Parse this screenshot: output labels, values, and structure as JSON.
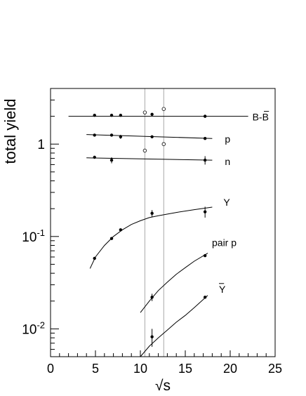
{
  "chart_data": {
    "type": "scatter",
    "title": "",
    "xlabel": "√s",
    "ylabel": "total yield",
    "xlim": [
      0,
      25
    ],
    "ylim": [
      0.005,
      4
    ],
    "yscale": "log",
    "grid": false,
    "legend": "none",
    "x_ticks": [
      {
        "value": 0,
        "label": "0"
      },
      {
        "value": 5,
        "label": "5"
      },
      {
        "value": 10,
        "label": "10"
      },
      {
        "value": 15,
        "label": "15"
      },
      {
        "value": 20,
        "label": "20"
      },
      {
        "value": 25,
        "label": "25"
      }
    ],
    "y_ticks": [
      {
        "value": 0.01,
        "base": "10",
        "exp": "-2"
      },
      {
        "value": 0.1,
        "base": "10",
        "exp": "-1"
      },
      {
        "value": 1,
        "base": "1",
        "exp": ""
      }
    ],
    "reference_lines_x": [
      10.5,
      12.6
    ],
    "series": [
      {
        "name": "B-B̄",
        "points": [
          {
            "x": 4.9,
            "y": 2.05,
            "err": 0
          },
          {
            "x": 6.8,
            "y": 2.05,
            "err": 0
          },
          {
            "x": 7.8,
            "y": 2.05,
            "err": 0
          },
          {
            "x": 11.3,
            "y": 2.1,
            "err": 0
          },
          {
            "x": 17.2,
            "y": 2.0,
            "err": 0.08
          }
        ],
        "open_points": [
          {
            "x": 10.5,
            "y": 2.2
          },
          {
            "x": 12.6,
            "y": 2.4
          }
        ],
        "curve": [
          [
            2,
            2.0
          ],
          [
            22,
            2.0
          ]
        ]
      },
      {
        "name": "p",
        "points": [
          {
            "x": 4.9,
            "y": 1.25,
            "err": 0
          },
          {
            "x": 6.8,
            "y": 1.25,
            "err": 0
          },
          {
            "x": 7.8,
            "y": 1.2,
            "err": 0.06
          },
          {
            "x": 11.3,
            "y": 1.2,
            "err": 0
          },
          {
            "x": 17.2,
            "y": 1.15,
            "err": 0
          }
        ],
        "open_points": [],
        "curve": [
          [
            4,
            1.27
          ],
          [
            18,
            1.15
          ]
        ]
      },
      {
        "name": "n",
        "points": [
          {
            "x": 4.9,
            "y": 0.72,
            "err": 0
          },
          {
            "x": 6.8,
            "y": 0.67,
            "err": 0.05
          },
          {
            "x": 17.2,
            "y": 0.67,
            "err": 0.07
          }
        ],
        "open_points": [
          {
            "x": 10.5,
            "y": 0.85
          },
          {
            "x": 12.6,
            "y": 1.0
          }
        ],
        "curve": [
          [
            4,
            0.71
          ],
          [
            18,
            0.67
          ]
        ]
      },
      {
        "name": "Y",
        "points": [
          {
            "x": 4.9,
            "y": 0.058,
            "err": 0
          },
          {
            "x": 6.8,
            "y": 0.095,
            "err": 0
          },
          {
            "x": 7.8,
            "y": 0.118,
            "err": 0
          },
          {
            "x": 11.3,
            "y": 0.178,
            "err": 0.015
          },
          {
            "x": 17.2,
            "y": 0.185,
            "err": 0.025
          }
        ],
        "open_points": [],
        "curve": [
          [
            4.4,
            0.045
          ],
          [
            5,
            0.06
          ],
          [
            6,
            0.08
          ],
          [
            7,
            0.1
          ],
          [
            8,
            0.118
          ],
          [
            9,
            0.135
          ],
          [
            10,
            0.148
          ],
          [
            11,
            0.16
          ],
          [
            12,
            0.168
          ],
          [
            14,
            0.182
          ],
          [
            16,
            0.195
          ],
          [
            18,
            0.208
          ]
        ]
      },
      {
        "name": "pair p",
        "points": [
          {
            "x": 11.3,
            "y": 0.022,
            "err": 0.002
          },
          {
            "x": 17.2,
            "y": 0.062,
            "err": 0
          }
        ],
        "open_points": [],
        "curve": [
          [
            10,
            0.015
          ],
          [
            11,
            0.02
          ],
          [
            12,
            0.026
          ],
          [
            13,
            0.032
          ],
          [
            14,
            0.039
          ],
          [
            15,
            0.046
          ],
          [
            16,
            0.054
          ],
          [
            17.5,
            0.066
          ]
        ]
      },
      {
        "name": "Ȳ",
        "points": [
          {
            "x": 11.3,
            "y": 0.0082,
            "err": 0.0018
          },
          {
            "x": 17.2,
            "y": 0.022,
            "err": 0
          }
        ],
        "open_points": [],
        "curve": [
          [
            10,
            0.005
          ],
          [
            11,
            0.0065
          ],
          [
            12,
            0.008
          ],
          [
            13,
            0.0097
          ],
          [
            14,
            0.0118
          ],
          [
            15,
            0.014
          ],
          [
            16,
            0.017
          ],
          [
            17.5,
            0.023
          ]
        ]
      }
    ],
    "series_labels": [
      {
        "series": "B-B̄",
        "text": "B-B",
        "overline_start": 2
      },
      {
        "series": "p",
        "text": "p",
        "overline_start": -1
      },
      {
        "series": "n",
        "text": "n",
        "overline_start": -1
      },
      {
        "series": "Y",
        "text": "Y",
        "overline_start": -1
      },
      {
        "series": "pair p",
        "text": "pair p",
        "overline_start": -1
      },
      {
        "series": "Ȳ",
        "text": "Y",
        "overline_start": 0
      }
    ]
  }
}
